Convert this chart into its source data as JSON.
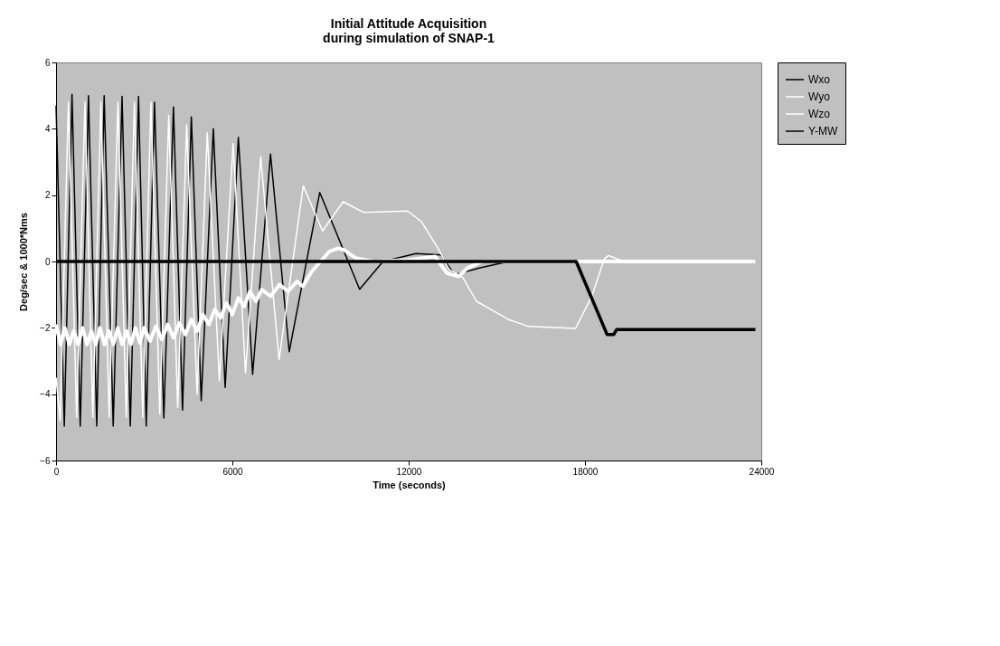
{
  "chart_data": {
    "type": "line",
    "title": "Initial Attitude Acquisition\nduring simulation of SNAP-1",
    "xlabel": "Time (seconds)",
    "ylabel": "Deg/sec & 1000*Nms",
    "xlim": [
      0,
      24000
    ],
    "xticks": [
      0,
      {
        "value": 6000,
        "label": "6000"
      },
      {
        "value": 12000,
        "label": "12000"
      },
      {
        "value": 18000,
        "label": "18000"
      },
      {
        "value": 24000,
        "label": "24000"
      }
    ],
    "ylim": [
      -6,
      6
    ],
    "yticks": [
      -6,
      -4,
      -2,
      0,
      2,
      4,
      6
    ],
    "grid": false,
    "legend": "right",
    "series": [
      {
        "name": "Wxo",
        "color": "#000000",
        "x": [
          0,
          281,
          543,
          823,
          1104,
          1385,
          1637,
          1946,
          2246,
          2526,
          2807,
          3069,
          3350,
          3668,
          3995,
          4304,
          4604,
          4940,
          5352,
          5755,
          6204,
          6690,
          7298,
          7935,
          8974,
          10330,
          11126,
          12250,
          13090,
          13560,
          14400,
          15400,
          23800
        ],
        "values": [
          4.7,
          -4.96,
          5.04,
          -4.96,
          5.0,
          -4.96,
          5.0,
          -4.96,
          4.98,
          -4.96,
          4.98,
          -4.96,
          4.8,
          -4.72,
          4.66,
          -4.48,
          4.36,
          -4.2,
          4.0,
          -3.8,
          3.74,
          -3.4,
          3.24,
          -2.72,
          2.08,
          -0.84,
          0.0,
          0.24,
          0.2,
          -0.4,
          -0.2,
          0.0,
          0.0
        ]
      },
      {
        "name": "Wyo",
        "color": "#ffffff",
        "x": [
          0,
          140,
          421,
          700,
          983,
          1250,
          1525,
          1810,
          2105,
          2390,
          2666,
          2950,
          3228,
          3530,
          3836,
          4140,
          4445,
          4800,
          5146,
          5558,
          6026,
          6447,
          6962,
          7589,
          8412,
          9067,
          9769,
          10470,
          11968,
          12435,
          12997,
          13371,
          13840,
          14307,
          15430,
          16084,
          17675,
          18237,
          18658,
          18798,
          19079,
          19360,
          23800
        ],
        "values": [
          -3.5,
          -4.8,
          4.8,
          -4.7,
          4.8,
          -4.7,
          4.8,
          -4.7,
          4.8,
          -4.7,
          4.8,
          -4.7,
          4.8,
          -4.6,
          4.4,
          -4.4,
          4.12,
          -4.0,
          3.88,
          -3.6,
          3.56,
          -3.36,
          3.16,
          -2.96,
          2.28,
          0.92,
          1.8,
          1.48,
          1.52,
          1.2,
          0.4,
          -0.24,
          -0.48,
          -1.2,
          -1.76,
          -1.96,
          -2.02,
          -1.04,
          0.08,
          0.18,
          0.08,
          0.0,
          0.0
        ]
      },
      {
        "name": "Wzo",
        "color": "#ffffff",
        "x": [
          0,
          150,
          300,
          450,
          600,
          750,
          900,
          1050,
          1200,
          1350,
          1500,
          1650,
          1800,
          1950,
          2100,
          2250,
          2400,
          2550,
          2700,
          2850,
          3000,
          3200,
          3400,
          3600,
          3800,
          4000,
          4200,
          4400,
          4600,
          4800,
          5000,
          5200,
          5400,
          5600,
          5800,
          6000,
          6200,
          6400,
          6600,
          6800,
          7000,
          7300,
          7600,
          7900,
          8200,
          8400,
          8700,
          9000,
          9300,
          9600,
          9800,
          10200,
          10800,
          12000,
          12900,
          13300,
          13700,
          14000,
          14500,
          23800
        ],
        "values": [
          -1.9,
          -2.5,
          -2.0,
          -2.5,
          -2.1,
          -2.5,
          -2.0,
          -2.5,
          -2.1,
          -2.5,
          -2.0,
          -2.5,
          -2.1,
          -2.5,
          -2.0,
          -2.5,
          -2.1,
          -2.5,
          -2.0,
          -2.45,
          -2.0,
          -2.4,
          -1.95,
          -2.35,
          -1.9,
          -2.3,
          -1.85,
          -2.2,
          -1.75,
          -2.1,
          -1.6,
          -1.9,
          -1.45,
          -1.7,
          -1.25,
          -1.6,
          -1.1,
          -1.35,
          -0.9,
          -1.2,
          -0.85,
          -1.05,
          -0.7,
          -0.9,
          -0.6,
          -0.75,
          -0.3,
          0.0,
          0.3,
          0.4,
          0.35,
          0.1,
          0.0,
          0.05,
          0.15,
          -0.35,
          -0.45,
          -0.2,
          0.0,
          0.0
        ]
      },
      {
        "name": "Y-MW",
        "color": "#000000",
        "x": [
          0,
          17700,
          18750,
          18980,
          19080,
          23800
        ],
        "values": [
          0.0,
          0.0,
          -2.2,
          -2.2,
          -2.05,
          -2.05
        ]
      }
    ]
  }
}
